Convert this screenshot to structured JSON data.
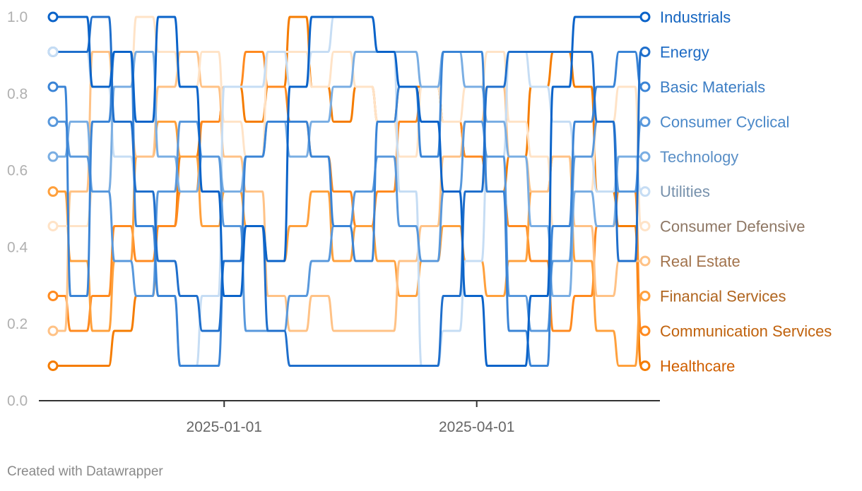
{
  "credit": "Created with Datawrapper",
  "chart_data": {
    "type": "line",
    "title": "",
    "xlabel": "",
    "ylabel": "",
    "x_range": [
      "2024-11-01",
      "2025-05-31"
    ],
    "x_ticks": [
      "2025-01-01",
      "2025-04-01"
    ],
    "ylim": [
      0,
      1.0
    ],
    "y_ticks": [
      "0.0",
      "0.2",
      "0.4",
      "0.6",
      "0.8",
      "1.0"
    ],
    "grid": false,
    "legend": "direct labels at right end of lines",
    "series": [
      {
        "name": "Industrials",
        "color": "#0a63c9",
        "values": [
          1.0,
          1.0,
          0.818,
          0.909,
          0.727,
          1.0,
          0.818,
          0.545,
          0.273,
          0.455,
          0.364,
          0.818,
          1.0,
          1.0,
          1.0,
          0.909,
          0.818,
          0.727,
          0.545,
          0.273,
          0.091,
          0.091,
          0.273,
          0.818,
          1.0,
          1.0,
          1.0,
          1.0
        ]
      },
      {
        "name": "Energy",
        "color": "#1f6fcc",
        "values": [
          0.909,
          0.909,
          1.0,
          0.727,
          0.545,
          0.364,
          0.273,
          0.182,
          0.364,
          0.455,
          0.182,
          0.091,
          0.091,
          0.091,
          0.091,
          0.091,
          0.091,
          0.091,
          0.273,
          0.545,
          0.818,
          0.909,
          0.909,
          0.909,
          0.909,
          0.727,
          0.364,
          0.909
        ]
      },
      {
        "name": "Basic Materials",
        "color": "#3a84d6",
        "values": [
          0.818,
          0.273,
          0.727,
          0.909,
          0.455,
          0.273,
          0.091,
          0.091,
          0.364,
          0.636,
          0.727,
          0.727,
          0.636,
          0.455,
          0.364,
          0.727,
          0.818,
          0.636,
          0.909,
          0.909,
          0.545,
          0.182,
          0.091,
          0.455,
          0.727,
          0.818,
          0.909,
          0.818
        ]
      },
      {
        "name": "Consumer Cyclical",
        "color": "#5898dc",
        "values": [
          0.727,
          0.636,
          0.545,
          0.364,
          0.273,
          0.545,
          0.727,
          0.636,
          0.455,
          0.182,
          0.182,
          0.273,
          0.364,
          0.455,
          0.545,
          0.636,
          0.455,
          0.364,
          0.545,
          0.727,
          0.636,
          0.273,
          0.182,
          0.364,
          0.636,
          0.727,
          0.545,
          0.727
        ]
      },
      {
        "name": "Technology",
        "color": "#7aaee3",
        "values": [
          0.636,
          0.727,
          0.545,
          0.818,
          0.909,
          0.636,
          0.545,
          0.636,
          0.545,
          0.636,
          0.727,
          0.636,
          0.727,
          0.818,
          0.909,
          0.909,
          0.909,
          0.818,
          0.909,
          0.818,
          0.727,
          0.636,
          0.455,
          0.273,
          0.545,
          0.455,
          0.636,
          0.636
        ]
      },
      {
        "name": "Utilities",
        "color": "#c6ddf4",
        "values": [
          0.909,
          0.909,
          0.818,
          0.636,
          0.545,
          0.273,
          0.091,
          0.273,
          0.818,
          0.818,
          0.909,
          0.818,
          0.909,
          1.0,
          1.0,
          0.909,
          0.545,
          0.091,
          0.182,
          0.364,
          0.636,
          0.909,
          0.818,
          0.727,
          0.636,
          0.545,
          0.636,
          0.545
        ]
      },
      {
        "name": "Consumer Defensive",
        "color": "#ffe3c7",
        "values": [
          0.455,
          0.455,
          0.545,
          0.818,
          1.0,
          0.909,
          0.818,
          0.909,
          0.727,
          0.636,
          0.909,
          0.909,
          0.818,
          0.909,
          0.818,
          0.727,
          0.636,
          0.818,
          0.727,
          0.818,
          0.909,
          0.727,
          0.636,
          0.455,
          0.545,
          0.727,
          0.818,
          0.455
        ]
      },
      {
        "name": "Real Estate",
        "color": "#ffc286",
        "values": [
          0.182,
          0.545,
          0.909,
          0.727,
          0.636,
          0.818,
          0.909,
          0.818,
          0.636,
          0.545,
          0.273,
          0.182,
          0.273,
          0.182,
          0.182,
          0.182,
          0.364,
          0.455,
          0.636,
          0.727,
          0.818,
          0.636,
          0.545,
          0.636,
          0.455,
          0.273,
          0.364,
          0.364
        ]
      },
      {
        "name": "Financial Services",
        "color": "#ffa03c",
        "values": [
          0.545,
          0.364,
          0.182,
          0.364,
          0.636,
          0.727,
          0.636,
          0.455,
          0.545,
          0.455,
          0.364,
          0.455,
          0.545,
          0.364,
          0.455,
          0.364,
          0.273,
          0.364,
          0.455,
          0.364,
          0.273,
          0.364,
          0.545,
          0.636,
          0.364,
          0.182,
          0.091,
          0.273
        ]
      },
      {
        "name": "Communication Services",
        "color": "#ff8a1f",
        "values": [
          0.273,
          0.182,
          0.273,
          0.455,
          0.364,
          0.455,
          0.545,
          0.727,
          0.818,
          0.909,
          0.818,
          0.727,
          0.636,
          0.545,
          0.455,
          0.545,
          0.727,
          0.818,
          0.727,
          0.636,
          0.545,
          0.455,
          0.364,
          0.182,
          0.273,
          0.455,
          0.545,
          0.182
        ]
      },
      {
        "name": "Healthcare",
        "color": "#f57c00",
        "values": [
          0.091,
          0.091,
          0.091,
          0.182,
          0.273,
          0.455,
          0.636,
          0.727,
          0.818,
          0.727,
          0.818,
          1.0,
          0.818,
          0.727,
          0.818,
          0.727,
          0.818,
          0.818,
          0.727,
          0.636,
          0.545,
          0.636,
          0.818,
          0.909,
          0.818,
          0.545,
          0.455,
          0.091
        ]
      }
    ],
    "end_labels": [
      {
        "series": "Industrials",
        "color": "#1565c0"
      },
      {
        "series": "Energy",
        "color": "#1e6bc4"
      },
      {
        "series": "Basic Materials",
        "color": "#3b7dc4"
      },
      {
        "series": "Consumer Cyclical",
        "color": "#4a88c8"
      },
      {
        "series": "Technology",
        "color": "#5a8fc6"
      },
      {
        "series": "Utilities",
        "color": "#7791ac"
      },
      {
        "series": "Consumer Defensive",
        "color": "#8e7764"
      },
      {
        "series": "Real Estate",
        "color": "#a2734c"
      },
      {
        "series": "Financial Services",
        "color": "#b0651f"
      },
      {
        "series": "Communication Services",
        "color": "#c0620d"
      },
      {
        "series": "Healthcare",
        "color": "#d05f00"
      }
    ]
  }
}
